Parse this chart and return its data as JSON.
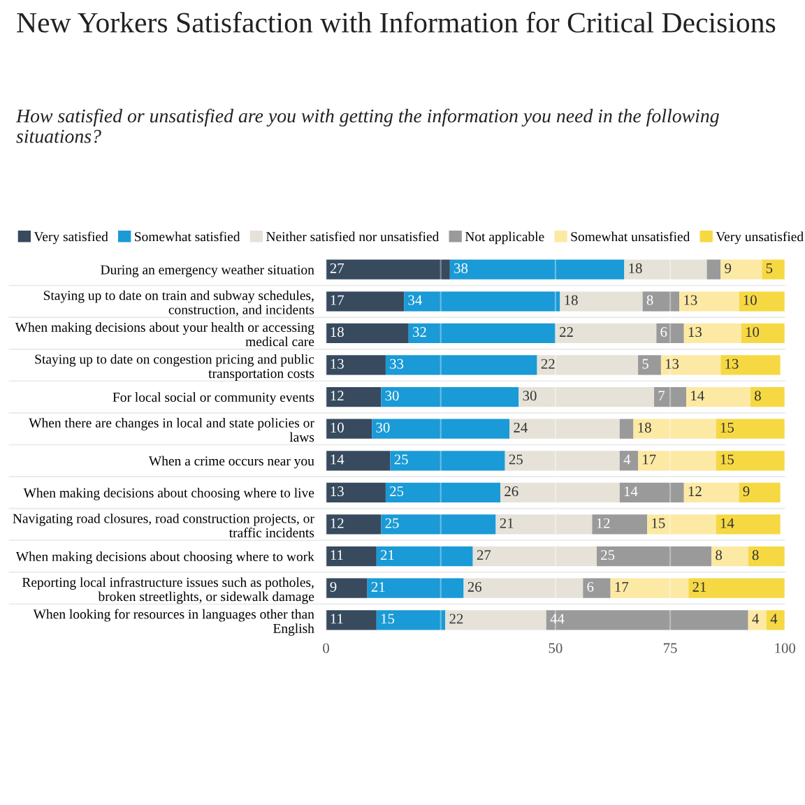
{
  "chart_data": {
    "type": "bar",
    "orientation": "horizontal",
    "stacked": true,
    "title": "New Yorkers Satisfaction with Information for Critical Decisions",
    "subtitle": "How satisfied or unsatisfied are you with getting the information you need in the following situations?",
    "categories": [
      "During an emergency weather situation",
      "Staying up to date on train and subway schedules, construction, and incidents",
      "When making decisions about your health or accessing medical care",
      "Staying up to date on congestion pricing and public transportation costs",
      "For local social or community events",
      "When there are changes in local and state policies or laws",
      "When a crime occurs near you",
      "When making decisions about choosing where to live",
      "Navigating road closures, road construction projects, or traffic incidents",
      "When making decisions about choosing where to work",
      "Reporting local infrastructure issues such as potholes, broken streetlights, or sidewalk damage",
      "When looking for resources in languages other than English"
    ],
    "series": [
      {
        "name": "Very satisfied",
        "color": "#374a5e",
        "values": [
          27,
          17,
          18,
          13,
          12,
          10,
          14,
          13,
          12,
          11,
          9,
          11
        ],
        "value_labels": [
          "27",
          "17",
          "18",
          "13",
          "12",
          "10",
          "14",
          "13",
          "12",
          "11",
          "9",
          "11"
        ]
      },
      {
        "name": "Somewhat satisfied",
        "color": "#1a9ad6",
        "values": [
          38,
          34,
          32,
          33,
          30,
          30,
          25,
          25,
          25,
          21,
          21,
          15
        ],
        "value_labels": [
          "38",
          "34",
          "32",
          "33",
          "30",
          "30",
          "25",
          "25",
          "25",
          "21",
          "21",
          "15"
        ]
      },
      {
        "name": "Neither satisfied nor unsatisfied",
        "color": "#e6e2d8",
        "values": [
          18,
          18,
          22,
          22,
          29.5,
          24,
          25,
          26,
          21,
          27,
          26,
          22
        ],
        "value_labels": [
          "18",
          "18",
          "22",
          "22",
          "30",
          "24",
          "25",
          "26",
          "21",
          "27",
          "26",
          "22"
        ]
      },
      {
        "name": "Not applicable",
        "color": "#9a9a9a",
        "values": [
          3,
          8,
          6,
          5,
          7,
          3,
          4,
          14,
          12,
          25,
          6,
          44
        ],
        "value_labels": [
          null,
          "8",
          "6",
          "5",
          "7",
          null,
          "4",
          "14",
          "12",
          "25",
          "6",
          "44"
        ]
      },
      {
        "name": "Somewhat unsatisfied",
        "color": "#fce9a4",
        "values": [
          9,
          13,
          12.5,
          13,
          14,
          18,
          17,
          12,
          15,
          8,
          17,
          4
        ],
        "value_labels": [
          "9",
          "13",
          "13",
          "13",
          "14",
          "18",
          "17",
          "12",
          "15",
          "8",
          "17",
          "4"
        ]
      },
      {
        "name": "Very unsatisfied",
        "color": "#f6d843",
        "values": [
          5,
          10,
          9.5,
          13,
          7.5,
          15,
          15,
          9,
          14,
          8,
          21,
          4
        ],
        "value_labels": [
          "5",
          "10",
          "10",
          "13",
          "8",
          "15",
          "15",
          "9",
          "14",
          "8",
          "21",
          "4"
        ]
      }
    ],
    "xlim": [
      0,
      100
    ],
    "xticks": [
      0,
      {
        "value": 25,
        "label": null
      },
      50,
      75,
      100
    ],
    "grid": "x",
    "legend": "top"
  }
}
